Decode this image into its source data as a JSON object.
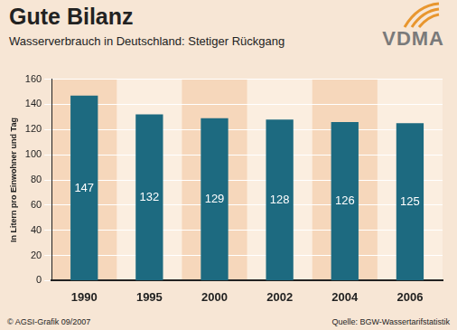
{
  "chart_data": {
    "type": "bar",
    "title": "Gute Bilanz",
    "subtitle": "Wasserverbrauch in Deutschland: Stetiger Rückgang",
    "y_label": "In Litern pro Einwohner und Tag",
    "categories": [
      "1990",
      "1995",
      "2000",
      "2002",
      "2004",
      "2006"
    ],
    "values": [
      147,
      132,
      129,
      128,
      126,
      125
    ],
    "color": "#1d6a80",
    "ylim": [
      0,
      160
    ],
    "yticks": [
      0,
      20,
      40,
      60,
      80,
      100,
      120,
      140,
      160
    ],
    "grid": true,
    "data_labels": true,
    "logo": "VDMA",
    "credit": "© AGSI-Grafik 09/2007",
    "source": "Quelle: BGW-Wassertarifstatistik"
  }
}
